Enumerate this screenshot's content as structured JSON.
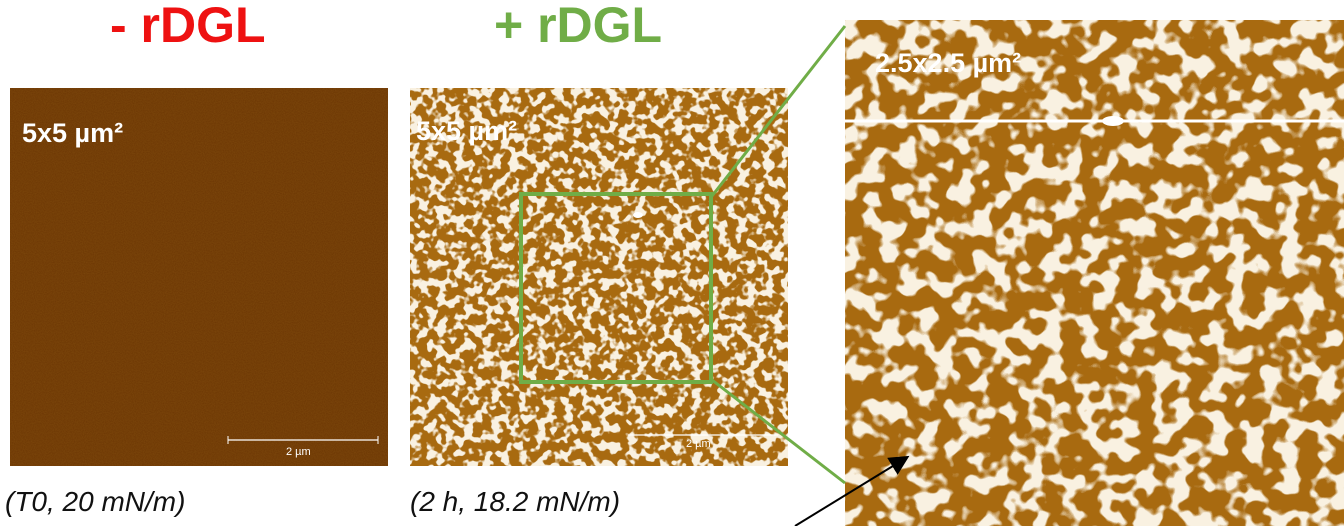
{
  "titles": {
    "minus": "- rDGL",
    "plus": "+ rDGL"
  },
  "panels": {
    "left": {
      "label": "5x5 µm²",
      "scalebar": "2 µm",
      "caption": "(T0, 20 mN/m)"
    },
    "middle": {
      "label": "5x5 µm²",
      "scalebar": "2 µm",
      "caption": "(2 h, 18.2 mN/m)"
    },
    "right": {
      "label": "2.5x2.5 µm²"
    }
  },
  "colors": {
    "minus_title": "#ee1111",
    "plus_title": "#70ad47",
    "zoom_box": "#70ad47",
    "left_surface": "#6b3503",
    "domain_surface": "#a86a10",
    "domains": "#f1e0bf"
  }
}
